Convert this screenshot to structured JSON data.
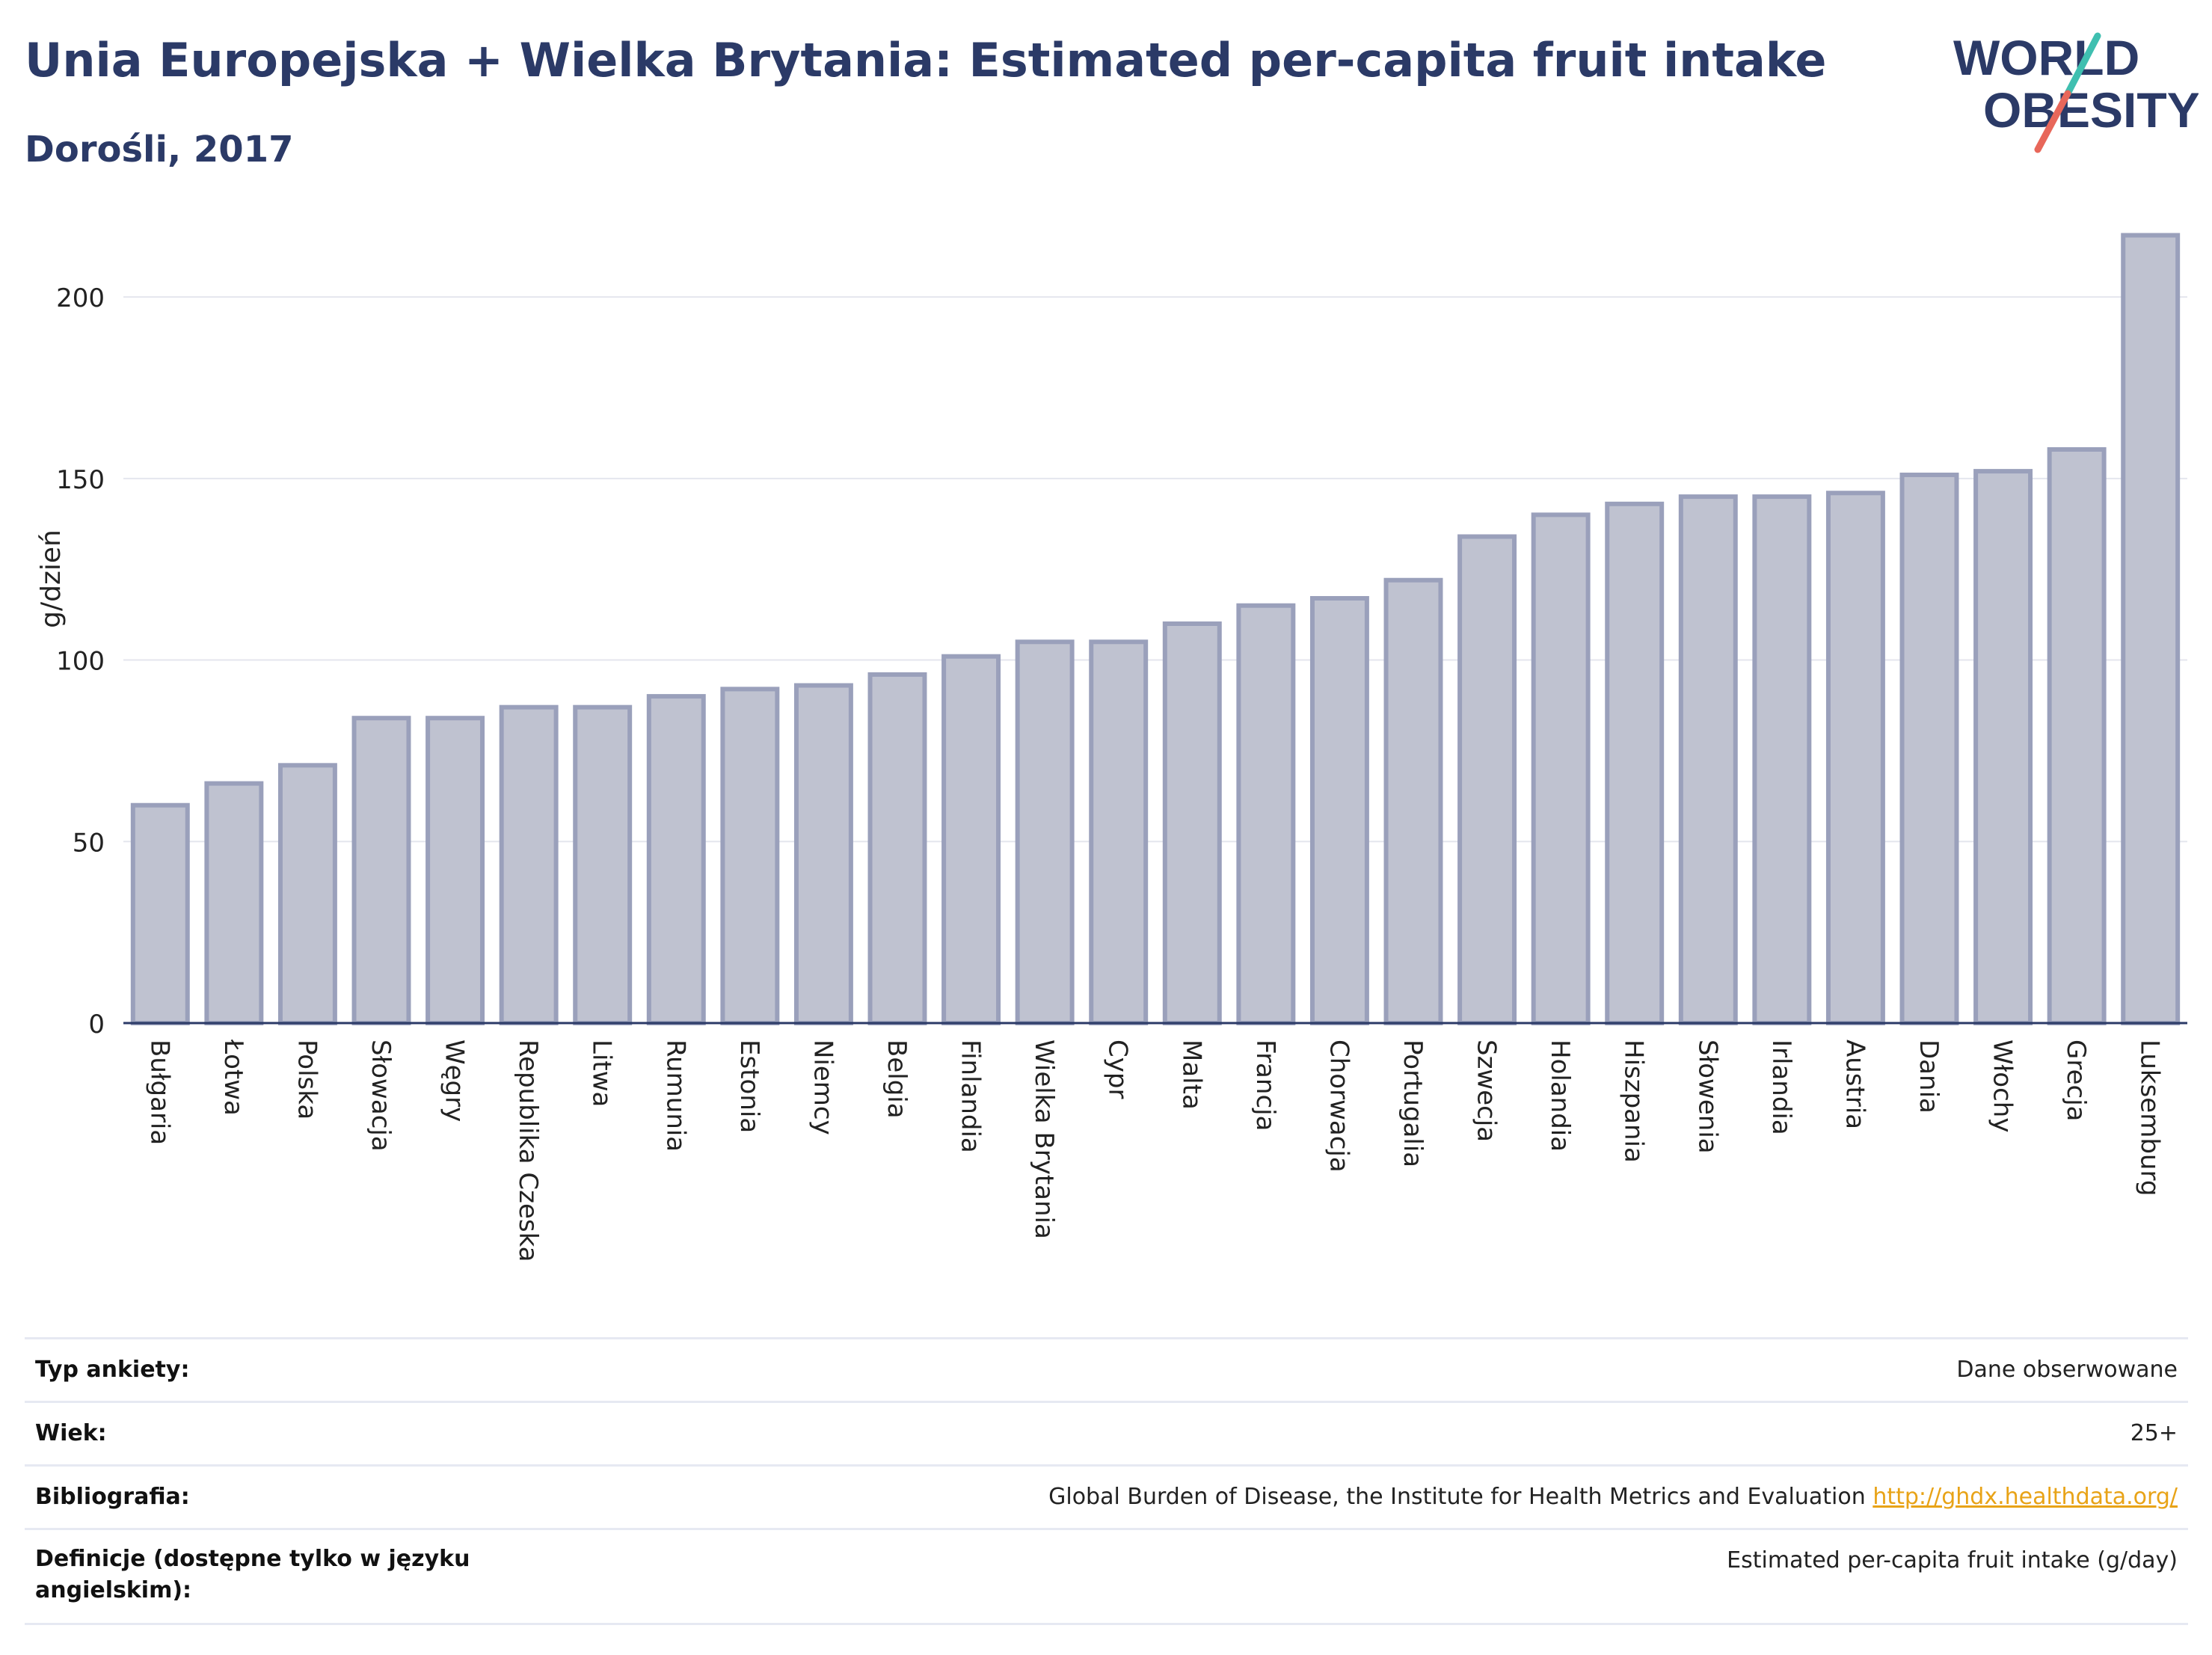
{
  "header": {
    "title": "Unia Europejska + Wielka Brytania: Estimated per-capita fruit intake",
    "subtitle": "Dorośli, 2017"
  },
  "logo": {
    "line1": "WORLD",
    "line2": "OBESITY",
    "colors": {
      "text": "#2b3a67",
      "slash_top": "#3fbfb0",
      "slash_bottom": "#e8675a"
    }
  },
  "chart_data": {
    "type": "bar",
    "ylabel": "g/dzień",
    "xlabel": "",
    "ylim": [
      0,
      220
    ],
    "yticks": [
      0,
      50,
      100,
      150,
      200
    ],
    "grid": true,
    "colors": {
      "bar_fill": "#bfc2d0",
      "bar_stroke": "#9aa0bb",
      "axis": "#2b3a67",
      "grid": "#e4e6ee"
    },
    "categories": [
      "Bułgaria",
      "Łotwa",
      "Polska",
      "Słowacja",
      "Węgry",
      "Republika Czeska",
      "Litwa",
      "Rumunia",
      "Estonia",
      "Niemcy",
      "Belgia",
      "Finlandia",
      "Wielka Brytania",
      "Cypr",
      "Malta",
      "Francja",
      "Chorwacja",
      "Portugalia",
      "Szwecja",
      "Holandia",
      "Hiszpania",
      "Słowenia",
      "Irlandia",
      "Austria",
      "Dania",
      "Włochy",
      "Grecja",
      "Luksemburg"
    ],
    "values": [
      60,
      66,
      71,
      84,
      84,
      87,
      87,
      90,
      92,
      93,
      96,
      101,
      105,
      105,
      110,
      115,
      117,
      122,
      134,
      140,
      143,
      145,
      145,
      146,
      151,
      152,
      158,
      217
    ]
  },
  "meta": [
    {
      "label": "Typ ankiety:",
      "value": "Dane obserwowane"
    },
    {
      "label": "Wiek:",
      "value": "25+"
    },
    {
      "label": "Bibliografia:",
      "value": "Global Burden of Disease, the Institute for Health Metrics and Evaluation",
      "link": "http://ghdx.healthdata.org/"
    },
    {
      "label": "Definicje (dostępne tylko w języku angielskim):",
      "value": "Estimated per-capita fruit intake (g/day)"
    }
  ]
}
